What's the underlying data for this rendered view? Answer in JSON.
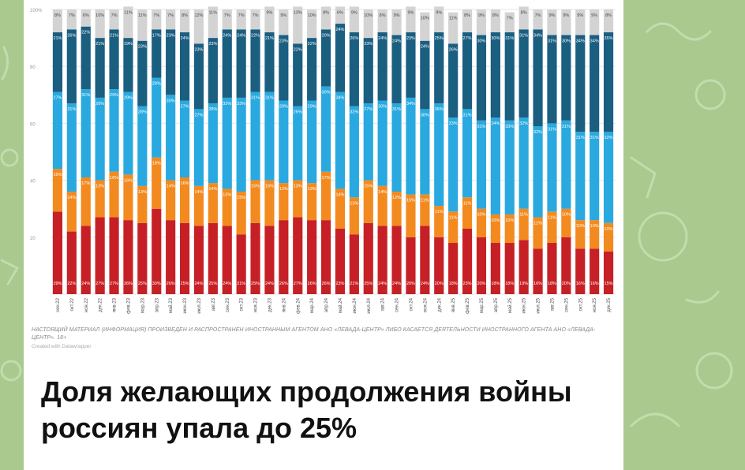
{
  "page": {
    "headline": "Доля желающих продолжения войны россиян упала до 25%",
    "disclaimer": "НАСТОЯЩИЙ МАТЕРИАЛ (ИНФОРМАЦИЯ) ПРОИЗВЕДЕН И РАСПРОСТРАНЕН ИНОСТРАННЫМ АГЕНТОМ АНО «ЛЕВАДА-ЦЕНТР» ЛИБО КАСАЕТСЯ ДЕЯТЕЛЬНОСТИ ИНОСТРАННОГО АГЕНТА АНО «ЛЕВАДА-ЦЕНТР». 18+",
    "credit": "Created with Datawrapper"
  },
  "colors": {
    "page_background": "#a9c98f",
    "card": "#ffffff",
    "series": [
      "#c62026",
      "#f28a1f",
      "#29a9df",
      "#1a5e80",
      "#d3d3d3"
    ]
  },
  "chart_data": {
    "type": "bar",
    "stacked": true,
    "orientation": "vertical",
    "title": "",
    "xlabel": "",
    "ylabel": "",
    "ylim": [
      0,
      100
    ],
    "yticks": [
      "100%",
      "80",
      "60",
      "40",
      "20",
      ""
    ],
    "grid": true,
    "legend": "none",
    "categories": [
      "сен.22",
      "окт.22",
      "ноя.22",
      "дек.22",
      "янв.23",
      "фев.23",
      "мар.23",
      "апр.23",
      "май.23",
      "июн.23",
      "июл.23",
      "авг.23",
      "сен.23",
      "окт.23",
      "ноя.23",
      "дек.23",
      "янв.24",
      "фев.24",
      "мар.24",
      "апр.24",
      "май.24",
      "июн.24",
      "июл.24",
      "авг.24",
      "сен.24",
      "окт.24",
      "ноя.24",
      "дек.24",
      "янв.25",
      "фев.25",
      "мар.25",
      "апр.25",
      "май.25",
      "июн.25",
      "июл.25",
      "авг.25",
      "сен.25",
      "окт.25",
      "ноя.25",
      "дек.25"
    ],
    "series": [
      {
        "values": [
          29,
          22,
          24,
          27,
          27,
          26,
          25,
          30,
          26,
          25,
          24,
          25,
          24,
          21,
          25,
          24,
          26,
          27,
          26,
          26,
          23,
          21,
          25,
          24,
          24,
          20,
          24,
          20,
          18,
          23,
          20,
          18,
          18,
          19,
          16,
          18,
          20,
          16,
          16,
          15
        ]
      },
      {
        "values": [
          15,
          14,
          17,
          13,
          16,
          16,
          13,
          18,
          14,
          16,
          14,
          14,
          13,
          15,
          15,
          16,
          13,
          13,
          13,
          17,
          14,
          13,
          15,
          14,
          12,
          15,
          11,
          11,
          11,
          11,
          10,
          10,
          10,
          11,
          11,
          11,
          10,
          10,
          10,
          10
        ]
      },
      {
        "values": [
          27,
          31,
          31,
          29,
          29,
          29,
          28,
          28,
          30,
          27,
          27,
          28,
          32,
          33,
          31,
          31,
          29,
          26,
          29,
          30,
          34,
          32,
          27,
          30,
          31,
          34,
          30,
          36,
          33,
          31,
          31,
          34,
          33,
          32,
          32,
          31,
          31,
          31,
          31,
          32
        ]
      },
      {
        "values": [
          21,
          26,
          22,
          21,
          21,
          19,
          23,
          17,
          23,
          24,
          23,
          23,
          24,
          24,
          22,
          21,
          23,
          22,
          22,
          20,
          24,
          26,
          23,
          24,
          24,
          23,
          24,
          25,
          26,
          27,
          30,
          30,
          31,
          31,
          34,
          31,
          30,
          34,
          34,
          35
        ]
      },
      {
        "values": [
          8,
          7,
          6,
          10,
          7,
          11,
          11,
          7,
          7,
          8,
          12,
          11,
          7,
          7,
          7,
          9,
          9,
          13,
          10,
          8,
          6,
          9,
          10,
          8,
          9,
          9,
          10,
          9,
          11,
          8,
          9,
          8,
          7,
          8,
          7,
          9,
          9,
          9,
          9,
          8
        ]
      }
    ]
  }
}
